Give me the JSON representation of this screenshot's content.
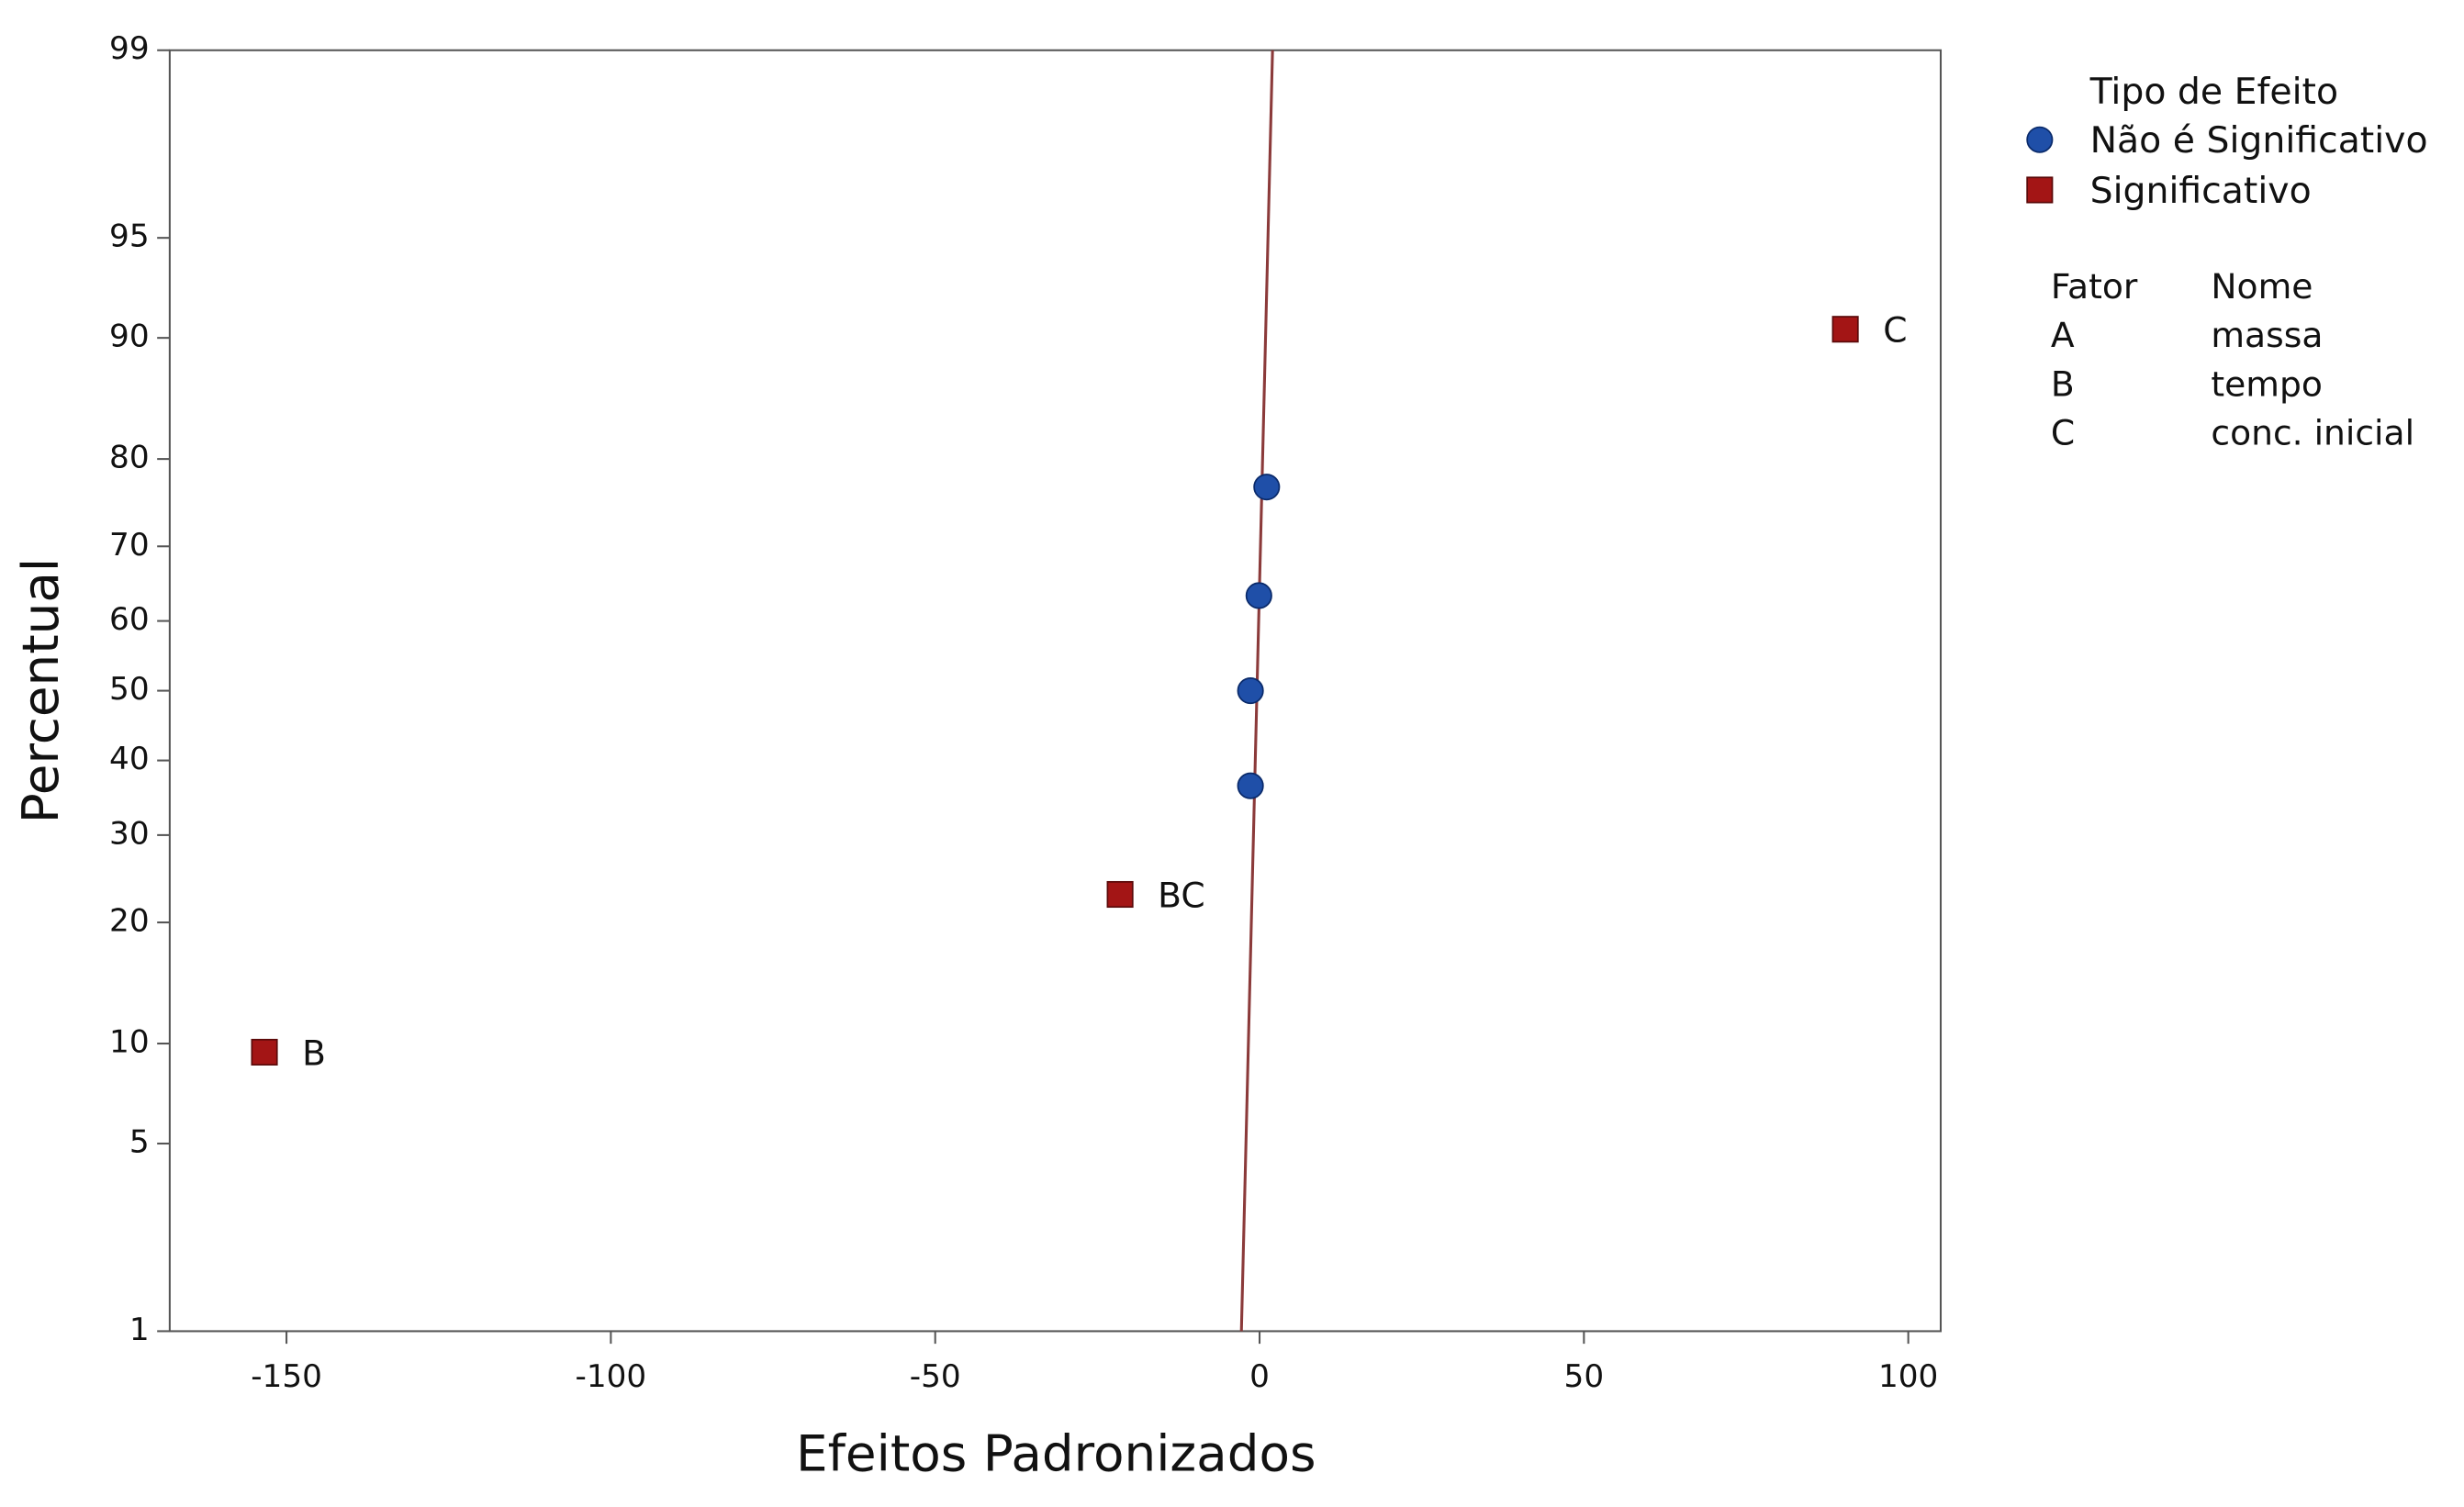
{
  "chart_data": {
    "type": "scatter",
    "yscale": "normal-probability",
    "xlabel": "Efeitos Padronizados",
    "ylabel": "Percentual",
    "xlim": [
      -168,
      105
    ],
    "xticks": [
      -150,
      -100,
      -50,
      0,
      50,
      100
    ],
    "ylim": [
      1,
      99
    ],
    "yticks": [
      1,
      5,
      10,
      20,
      30,
      40,
      50,
      60,
      70,
      80,
      90,
      95,
      99
    ],
    "legend_title": "Tipo de Efeito",
    "series": [
      {
        "name": "Não é Significativo",
        "color": "#1f4fa8",
        "marker": "circle",
        "x": [
          -1.4,
          -1.4,
          -0.1,
          1.1
        ],
        "values": [
          36.49,
          50,
          63.51,
          77.03
        ]
      },
      {
        "name": "Significativo",
        "color": "#a31515",
        "marker": "square",
        "x": [
          -153.4,
          -21.5,
          90.3
        ],
        "values": [
          9.46,
          22.97,
          90.54
        ],
        "labels": [
          "B",
          "BC",
          "C"
        ]
      }
    ],
    "fit_line": {
      "color": "#8b3a3a",
      "x": [
        -2.8,
        2.0
      ],
      "y": [
        1,
        99
      ]
    },
    "factor_table": {
      "headers": [
        "Fator",
        "Nome"
      ],
      "rows": [
        [
          "A",
          "massa"
        ],
        [
          "B",
          "tempo"
        ],
        [
          "C",
          "conc. inicial"
        ]
      ]
    }
  }
}
